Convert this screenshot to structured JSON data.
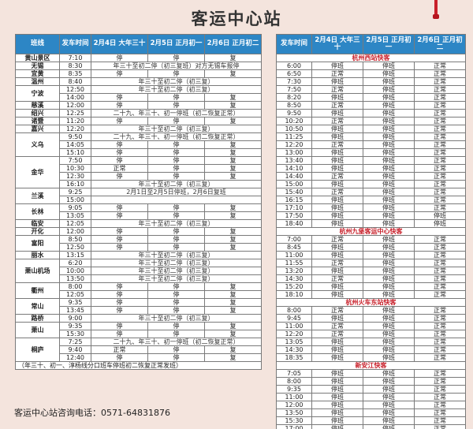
{
  "title": "客运中心站",
  "hotline": "客运中心站咨询电话：0571-64831876",
  "left": {
    "headers": [
      "班线",
      "发车时间",
      "2月4日 大年三十",
      "2月5日 正月初一",
      "2月6日 正月初二"
    ],
    "groups": [
      {
        "city": "黄山景区",
        "rows": [
          {
            "t": "7:10",
            "c": [
              "停",
              "停",
              "复"
            ]
          }
        ]
      },
      {
        "city": "无锡",
        "rows": [
          {
            "t": "8:30",
            "note": "年三十至初二停（初三复班）对方无锡车报停"
          }
        ]
      },
      {
        "city": "宜黄",
        "rows": [
          {
            "t": "8:35",
            "c": [
              "停",
              "停",
              "复"
            ]
          }
        ]
      },
      {
        "city": "温州",
        "rows": [
          {
            "t": "8:40",
            "note": "年三十至初二停（初三复）"
          }
        ]
      },
      {
        "city": "宁波",
        "rows": [
          {
            "t": "12:50",
            "note": "年三十至初二停（初三复）"
          },
          {
            "t": "14:00",
            "c": [
              "停",
              "停",
              "复"
            ]
          }
        ]
      },
      {
        "city": "慈溪",
        "rows": [
          {
            "t": "12:00",
            "c": [
              "停",
              "停",
              "复"
            ]
          }
        ]
      },
      {
        "city": "绍兴",
        "rows": [
          {
            "t": "12:25",
            "note": "二十九、年三十、初一停班（初二恢复正常）"
          }
        ]
      },
      {
        "city": "诸暨",
        "rows": [
          {
            "t": "11:20",
            "c": [
              "停",
              "停",
              "复"
            ]
          }
        ]
      },
      {
        "city": "嘉兴",
        "rows": [
          {
            "t": "12:20",
            "note": "年三十至初二停（初三复）"
          }
        ]
      },
      {
        "city": "义乌",
        "rows": [
          {
            "t": "9:50",
            "note": "二十九、年三十、初一停班（初二恢复正常）"
          },
          {
            "t": "14:05",
            "c": [
              "停",
              "停",
              "复"
            ]
          },
          {
            "t": "15:10",
            "c": [
              "停",
              "停",
              "复"
            ]
          }
        ]
      },
      {
        "city": "金华",
        "rows": [
          {
            "t": "7:50",
            "c": [
              "停",
              "停",
              "复"
            ]
          },
          {
            "t": "10:30",
            "c": [
              "正常",
              "停",
              "复"
            ]
          },
          {
            "t": "12:30",
            "c": [
              "停",
              "停",
              "复"
            ]
          },
          {
            "t": "16:10",
            "note": "年三十至初二停（初三复）"
          }
        ]
      },
      {
        "city": "兰溪",
        "rows": [
          {
            "t": "9:25",
            "note": "2月1日至2月5日停班，2月6日复班"
          },
          {
            "t": "15:00",
            "note": ""
          }
        ]
      },
      {
        "city": "长林",
        "rows": [
          {
            "t": "9:05",
            "c": [
              "停",
              "停",
              "复"
            ]
          },
          {
            "t": "13:05",
            "c": [
              "停",
              "停",
              "复"
            ]
          }
        ]
      },
      {
        "city": "临安",
        "rows": [
          {
            "t": "12:05",
            "note": "年三十至初二停（初三复）"
          }
        ]
      },
      {
        "city": "开化",
        "rows": [
          {
            "t": "12:00",
            "c": [
              "停",
              "停",
              "复"
            ]
          }
        ]
      },
      {
        "city": "富阳",
        "rows": [
          {
            "t": "8:50",
            "c": [
              "停",
              "停",
              "复"
            ]
          },
          {
            "t": "12:50",
            "c": [
              "停",
              "停",
              "复"
            ]
          }
        ]
      },
      {
        "city": "丽水",
        "rows": [
          {
            "t": "13:15",
            "note": "年三十至初二停（初三复）"
          }
        ]
      },
      {
        "city": "萧山机场",
        "rows": [
          {
            "t": "6:20",
            "note": "年三十至初二停（初三复）"
          },
          {
            "t": "10:00",
            "note": "年三十至初二停（初三复）"
          },
          {
            "t": "13:50",
            "note": "年三十至初二停（初三复）"
          }
        ]
      },
      {
        "city": "衢州",
        "rows": [
          {
            "t": "8:00",
            "c": [
              "停",
              "停",
              "复"
            ]
          },
          {
            "t": "12:05",
            "c": [
              "停",
              "停",
              "复"
            ]
          }
        ]
      },
      {
        "city": "常山",
        "rows": [
          {
            "t": "9:35",
            "c": [
              "停",
              "停",
              "复"
            ]
          },
          {
            "t": "13:45",
            "c": [
              "停",
              "停",
              "复"
            ]
          }
        ]
      },
      {
        "city": "路桥",
        "rows": [
          {
            "t": "9:00",
            "note": "年三十至初二停（初三复）"
          }
        ]
      },
      {
        "city": "萧山",
        "rows": [
          {
            "t": "9:35",
            "c": [
              "停",
              "停",
              "复"
            ]
          },
          {
            "t": "15:30",
            "c": [
              "停",
              "停",
              "复"
            ]
          }
        ]
      },
      {
        "city": "桐庐",
        "rows": [
          {
            "t": "7:25",
            "note": "二十九、年三十、初一停班（初二恢复正常）"
          },
          {
            "t": "9:40",
            "c": [
              "正常",
              "停",
              "复"
            ]
          },
          {
            "t": "12:40",
            "c": [
              "停",
              "停",
              "复"
            ]
          }
        ]
      }
    ],
    "footnote": "（年三十、初一、淳杨线分口班车停班初二恢复正常发班）"
  },
  "right": {
    "headers": [
      "发车时间",
      "2月4日 大年三十",
      "2月5日 正月初一",
      "2月6日 正月初二"
    ],
    "sections": [
      {
        "name": "杭州西站快客",
        "rows": [
          [
            "6:00",
            "停班",
            "停班",
            "正常"
          ],
          [
            "6:50",
            "正常",
            "停班",
            "正常"
          ],
          [
            "7:30",
            "停班",
            "停班",
            "正常"
          ],
          [
            "7:50",
            "正常",
            "停班",
            "正常"
          ],
          [
            "8:20",
            "停班",
            "停班",
            "正常"
          ],
          [
            "8:50",
            "正常",
            "停班",
            "正常"
          ],
          [
            "9:50",
            "停班",
            "停班",
            "正常"
          ],
          [
            "10:20",
            "正常",
            "停班",
            "正常"
          ],
          [
            "10:50",
            "停班",
            "停班",
            "正常"
          ],
          [
            "11:25",
            "停班",
            "停班",
            "正常"
          ],
          [
            "12:20",
            "正常",
            "停班",
            "正常"
          ],
          [
            "13:00",
            "停班",
            "停班",
            "正常"
          ],
          [
            "13:40",
            "停班",
            "停班",
            "正常"
          ],
          [
            "14:10",
            "停班",
            "停班",
            "正常"
          ],
          [
            "14:40",
            "正常",
            "停班",
            "正常"
          ],
          [
            "15:00",
            "停班",
            "停班",
            "正常"
          ],
          [
            "15:40",
            "正常",
            "停班",
            "正常"
          ],
          [
            "16:15",
            "停班",
            "停班",
            "正常"
          ],
          [
            "17:10",
            "停班",
            "停班",
            "正常"
          ],
          [
            "17:50",
            "停班",
            "停班",
            "停班"
          ],
          [
            "18:40",
            "停班",
            "停班",
            "停班"
          ]
        ]
      },
      {
        "name": "杭州九堡客运中心快客",
        "rows": [
          [
            "7:00",
            "正常",
            "停班",
            "正常"
          ],
          [
            "8:45",
            "停班",
            "停班",
            "正常"
          ],
          [
            "11:00",
            "停班",
            "停班",
            "正常"
          ],
          [
            "11:55",
            "正常",
            "停班",
            "正常"
          ],
          [
            "13:20",
            "停班",
            "停班",
            "正常"
          ],
          [
            "14:30",
            "正常",
            "停班",
            "正常"
          ],
          [
            "15:20",
            "停班",
            "停班",
            "正常"
          ],
          [
            "18:10",
            "停班",
            "停班",
            "正常"
          ]
        ]
      },
      {
        "name": "杭州火车东站快客",
        "rows": [
          [
            "8:00",
            "正常",
            "停班",
            "正常"
          ],
          [
            "9:45",
            "停班",
            "停班",
            "正常"
          ],
          [
            "11:00",
            "正常",
            "停班",
            "正常"
          ],
          [
            "12:20",
            "正常",
            "停班",
            "正常"
          ],
          [
            "13:05",
            "停班",
            "停班",
            "正常"
          ],
          [
            "14:30",
            "停班",
            "停班",
            "正常"
          ],
          [
            "18:35",
            "停班",
            "停班",
            "正常"
          ]
        ]
      },
      {
        "name": "新安江快客",
        "rows": [
          [
            "7:05",
            "停班",
            "停班",
            "正常"
          ],
          [
            "8:00",
            "停班",
            "停班",
            "正常"
          ],
          [
            "9:35",
            "停班",
            "停班",
            "正常"
          ],
          [
            "11:00",
            "停班",
            "停班",
            "正常"
          ],
          [
            "12:00",
            "停班",
            "停班",
            "正常"
          ],
          [
            "13:50",
            "停班",
            "停班",
            "正常"
          ],
          [
            "15:30",
            "停班",
            "停班",
            "正常"
          ],
          [
            "17:00",
            "停班",
            "停班",
            "正常"
          ]
        ]
      }
    ]
  }
}
